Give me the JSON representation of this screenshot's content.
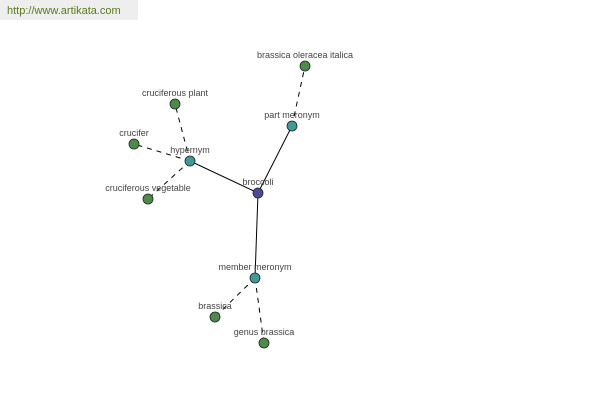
{
  "header": {
    "url": "http://www.artikata.com"
  },
  "colors": {
    "root": "#4b4b9b",
    "relation": "#3f9a9a",
    "leaf": "#4c8c48",
    "edge": "#000000"
  },
  "nodes": [
    {
      "id": "broccoli",
      "label": "broccoli",
      "kind": "root"
    },
    {
      "id": "hypernym",
      "label": "hypernym",
      "kind": "relation"
    },
    {
      "id": "part-meronym",
      "label": "part meronym",
      "kind": "relation"
    },
    {
      "id": "member-meronym",
      "label": "member meronym",
      "kind": "relation"
    },
    {
      "id": "brassica-oleracea-italica",
      "label": "brassica oleracea italica",
      "kind": "leaf"
    },
    {
      "id": "cruciferous-plant",
      "label": "cruciferous plant",
      "kind": "leaf"
    },
    {
      "id": "crucifer",
      "label": "crucifer",
      "kind": "leaf"
    },
    {
      "id": "cruciferous-vegetable",
      "label": "cruciferous vegetable",
      "kind": "leaf"
    },
    {
      "id": "brassica",
      "label": "brassica",
      "kind": "leaf"
    },
    {
      "id": "genus-brassica",
      "label": "genus brassica",
      "kind": "leaf"
    }
  ],
  "edges": [
    {
      "from": "broccoli",
      "to": "hypernym",
      "style": "solid"
    },
    {
      "from": "broccoli",
      "to": "part-meronym",
      "style": "solid"
    },
    {
      "from": "broccoli",
      "to": "member-meronym",
      "style": "solid"
    },
    {
      "from": "part-meronym",
      "to": "brassica-oleracea-italica",
      "style": "dashed"
    },
    {
      "from": "hypernym",
      "to": "cruciferous-plant",
      "style": "dashed"
    },
    {
      "from": "hypernym",
      "to": "crucifer",
      "style": "dashed"
    },
    {
      "from": "hypernym",
      "to": "cruciferous-vegetable",
      "style": "dashed"
    },
    {
      "from": "member-meronym",
      "to": "brassica",
      "style": "dashed"
    },
    {
      "from": "member-meronym",
      "to": "genus-brassica",
      "style": "dashed"
    }
  ]
}
